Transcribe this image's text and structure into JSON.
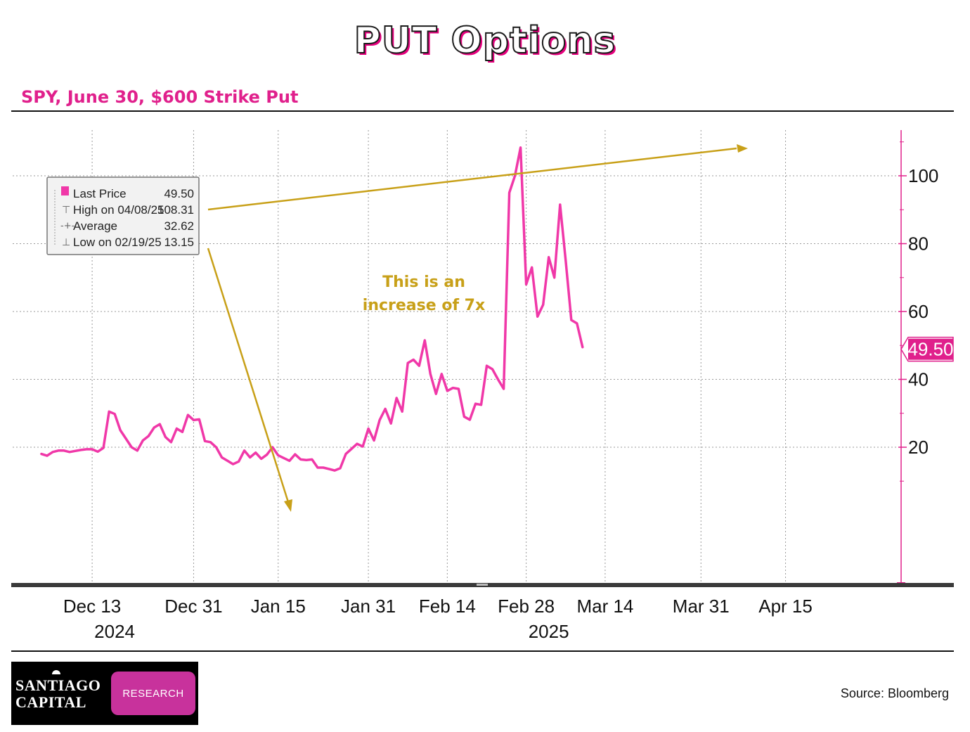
{
  "page": {
    "title": "PUT Options",
    "subtitle": "SPY, June 30, $600 Strike Put",
    "source": "Source: Bloomberg",
    "logo": {
      "name_line1": "Santiago",
      "name_line2": "Capital",
      "tag": "RESEARCH"
    },
    "annotation": {
      "line1": "This is an",
      "line2": "increase of 7x"
    },
    "colors": {
      "series": "#f038a8",
      "accent": "#e0208c",
      "annotation": "#c8a018",
      "title_shadow": "#e6007e"
    }
  },
  "legend": {
    "rows": [
      {
        "label": "Last Price",
        "value": "49.50"
      },
      {
        "label": "High on 04/08/25",
        "value": "108.31"
      },
      {
        "label": "Average",
        "value": "32.62"
      },
      {
        "label": "Low on 02/19/25",
        "value": "13.15"
      }
    ]
  },
  "chart_data": {
    "type": "line",
    "title": "SPY, June 30, $600 Strike Put",
    "xlabel": "",
    "ylabel": "",
    "ylim": [
      -20,
      112
    ],
    "yticks": [
      20,
      40,
      60,
      80,
      100
    ],
    "ytick_labels": [
      "20",
      "40",
      "60",
      "80",
      "100"
    ],
    "x_start": "Dec 8",
    "xticks": [
      {
        "day": 5,
        "label": "Dec 13",
        "sub": "2024"
      },
      {
        "day": 23,
        "label": "Dec 31",
        "sub": ""
      },
      {
        "day": 38,
        "label": "Jan 15",
        "sub": ""
      },
      {
        "day": 54,
        "label": "Jan 31",
        "sub": ""
      },
      {
        "day": 68,
        "label": "Feb 14",
        "sub": ""
      },
      {
        "day": 82,
        "label": "Feb 28",
        "sub": "2025"
      },
      {
        "day": 96,
        "label": "Mar 14",
        "sub": ""
      },
      {
        "day": 113,
        "label": "Mar 31",
        "sub": ""
      },
      {
        "day": 128,
        "label": "Apr 15",
        "sub": ""
      }
    ],
    "last_value_label": "49.50",
    "series": [
      {
        "name": "Last Price",
        "points": [
          [
            -4,
            18.0
          ],
          [
            -3,
            17.5
          ],
          [
            -2,
            18.6
          ],
          [
            -1,
            19.0
          ],
          [
            0,
            19.0
          ],
          [
            1,
            18.6
          ],
          [
            2,
            18.9
          ],
          [
            3,
            19.2
          ],
          [
            4,
            19.4
          ],
          [
            5,
            19.4
          ],
          [
            6,
            18.7
          ],
          [
            7,
            19.8
          ],
          [
            8,
            30.5
          ],
          [
            9,
            29.8
          ],
          [
            10,
            25.0
          ],
          [
            11,
            22.5
          ],
          [
            12,
            20.0
          ],
          [
            13,
            19.0
          ],
          [
            14,
            22.0
          ],
          [
            15,
            23.3
          ],
          [
            16,
            25.8
          ],
          [
            17,
            26.8
          ],
          [
            18,
            23.0
          ],
          [
            19,
            21.5
          ],
          [
            20,
            25.5
          ],
          [
            21,
            24.5
          ],
          [
            22,
            29.5
          ],
          [
            23,
            28.0
          ],
          [
            24,
            28.2
          ],
          [
            25,
            21.8
          ],
          [
            26,
            21.5
          ],
          [
            27,
            20.0
          ],
          [
            28,
            17.0
          ],
          [
            29,
            16.0
          ],
          [
            30,
            15.0
          ],
          [
            31,
            15.8
          ],
          [
            32,
            19.0
          ],
          [
            33,
            17.0
          ],
          [
            34,
            18.4
          ],
          [
            35,
            16.6
          ],
          [
            36,
            17.8
          ],
          [
            37,
            20.0
          ],
          [
            38,
            17.6
          ],
          [
            39,
            16.8
          ],
          [
            40,
            16.0
          ],
          [
            41,
            17.9
          ],
          [
            42,
            16.4
          ],
          [
            43,
            16.2
          ],
          [
            44,
            16.4
          ],
          [
            45,
            14.0
          ],
          [
            46,
            14.0
          ],
          [
            47,
            13.6
          ],
          [
            48,
            13.15
          ],
          [
            49,
            13.8
          ],
          [
            50,
            18.0
          ],
          [
            51,
            19.5
          ],
          [
            52,
            21.0
          ],
          [
            53,
            20.2
          ],
          [
            54,
            25.5
          ],
          [
            55,
            22.0
          ],
          [
            56,
            28.0
          ],
          [
            57,
            31.3
          ],
          [
            58,
            27.0
          ],
          [
            59,
            34.5
          ],
          [
            60,
            30.5
          ],
          [
            61,
            44.8
          ],
          [
            62,
            45.8
          ],
          [
            63,
            44.0
          ],
          [
            64,
            51.5
          ],
          [
            65,
            41.6
          ],
          [
            66,
            35.7
          ],
          [
            67,
            41.6
          ],
          [
            68,
            36.6
          ],
          [
            69,
            37.5
          ],
          [
            70,
            37.2
          ],
          [
            71,
            29.0
          ],
          [
            72,
            28.1
          ],
          [
            73,
            32.8
          ],
          [
            74,
            32.5
          ],
          [
            75,
            44.0
          ],
          [
            76,
            43.0
          ],
          [
            77,
            40.0
          ],
          [
            78,
            37.2
          ],
          [
            79,
            95.0
          ],
          [
            80,
            100.0
          ],
          [
            81,
            108.31
          ],
          [
            82,
            68.0
          ],
          [
            83,
            73.0
          ],
          [
            84,
            58.5
          ],
          [
            85,
            62.0
          ],
          [
            86,
            76.0
          ],
          [
            87,
            70.0
          ],
          [
            88,
            91.5
          ],
          [
            89,
            75.0
          ],
          [
            90,
            57.5
          ],
          [
            91,
            56.5
          ],
          [
            92,
            49.5
          ]
        ]
      }
    ]
  }
}
